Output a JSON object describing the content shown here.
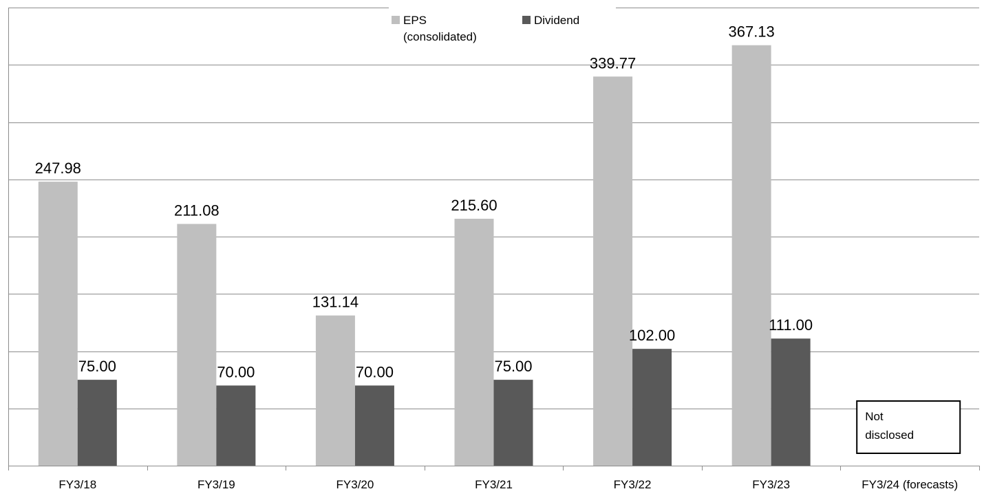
{
  "chart_data": {
    "type": "bar",
    "categories": [
      "FY3/18",
      "FY3/19",
      "FY3/20",
      "FY3/21",
      "FY3/22",
      "FY3/23",
      "FY3/24 (forecasts)"
    ],
    "series": [
      {
        "name": "EPS (consolidated)",
        "name_lines": [
          "EPS",
          "(consolidated)"
        ],
        "color": "#bfbfbf",
        "values": [
          247.98,
          211.08,
          131.14,
          215.6,
          339.77,
          367.13,
          null
        ],
        "labels": [
          "247.98",
          "211.08",
          "131.14",
          "215.60",
          "339.77",
          "367.13",
          ""
        ]
      },
      {
        "name": "Dividend",
        "name_lines": [
          "Dividend"
        ],
        "color": "#595959",
        "values": [
          75.0,
          70.0,
          70.0,
          75.0,
          102.0,
          111.0,
          null
        ],
        "labels": [
          "75.00",
          "70.00",
          "70.00",
          "75.00",
          "102.00",
          "111.00",
          ""
        ]
      }
    ],
    "ylim": [
      0,
      400
    ],
    "grid": true,
    "gridlines": 8,
    "legend_position": "top-center",
    "annotation": [
      "Not",
      "disclosed"
    ],
    "title": "",
    "xlabel": "",
    "ylabel": ""
  }
}
